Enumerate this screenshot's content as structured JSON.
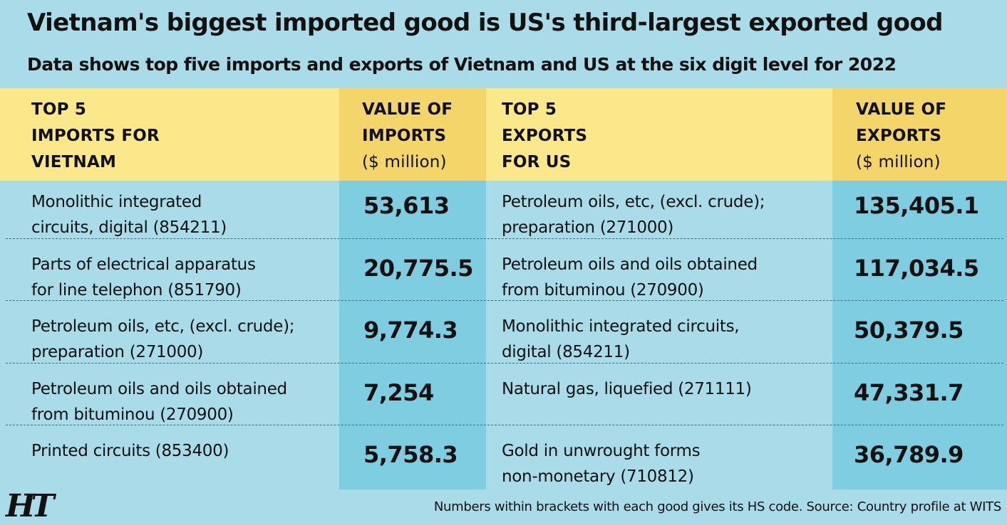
{
  "title": "Vietnam's biggest imported good is US's third-largest exported good",
  "subtitle": "Data shows top five imports and exports of Vietnam and US at the six digit level for 2022",
  "footnote": "Numbers within brackets with each good gives its HS code. Source: Country profile at WITS",
  "logo_text": "HT",
  "chart_data": {
    "type": "table",
    "columns": [
      {
        "lines": [
          "TOP 5",
          "IMPORTS FOR",
          "VIETNAM"
        ]
      },
      {
        "lines": [
          "VALUE OF",
          "IMPORTS"
        ],
        "unit": "($ million)"
      },
      {
        "lines": [
          "TOP 5",
          "EXPORTS",
          "FOR US"
        ]
      },
      {
        "lines": [
          "VALUE OF",
          "EXPORTS"
        ],
        "unit": "($ million)"
      }
    ],
    "rows": [
      {
        "import_label": [
          "Monolithic integrated",
          "circuits, digital (854211)"
        ],
        "import_value": "53,613",
        "export_label": [
          "Petroleum oils, etc, (excl. crude);",
          "preparation (271000)"
        ],
        "export_value": "135,405.1"
      },
      {
        "import_label": [
          "Parts of electrical apparatus",
          "for line telephon (851790)"
        ],
        "import_value": "20,775.5",
        "export_label": [
          "Petroleum oils and oils obtained",
          "from bituminou (270900)"
        ],
        "export_value": "117,034.5"
      },
      {
        "import_label": [
          "Petroleum oils, etc, (excl. crude);",
          "preparation (271000)"
        ],
        "import_value": "9,774.3",
        "export_label": [
          "Monolithic integrated circuits,",
          "digital (854211)"
        ],
        "export_value": "50,379.5"
      },
      {
        "import_label": [
          "Petroleum oils and oils obtained",
          "from bituminou (270900)"
        ],
        "import_value": "7,254",
        "export_label": [
          "Natural gas, liquefied (271111)"
        ],
        "export_value": "47,331.7"
      },
      {
        "import_label": [
          "Printed circuits (853400)"
        ],
        "import_value": "5,758.3",
        "export_label": [
          "Gold in unwrought forms",
          "non-monetary (710812)"
        ],
        "export_value": "36,789.9"
      }
    ],
    "colors": {
      "background": "#a9dbe8",
      "value_column": "#7fcde0",
      "header": "#fbe88a",
      "header_value_column": "#f4d56a",
      "text": "#111111"
    }
  }
}
